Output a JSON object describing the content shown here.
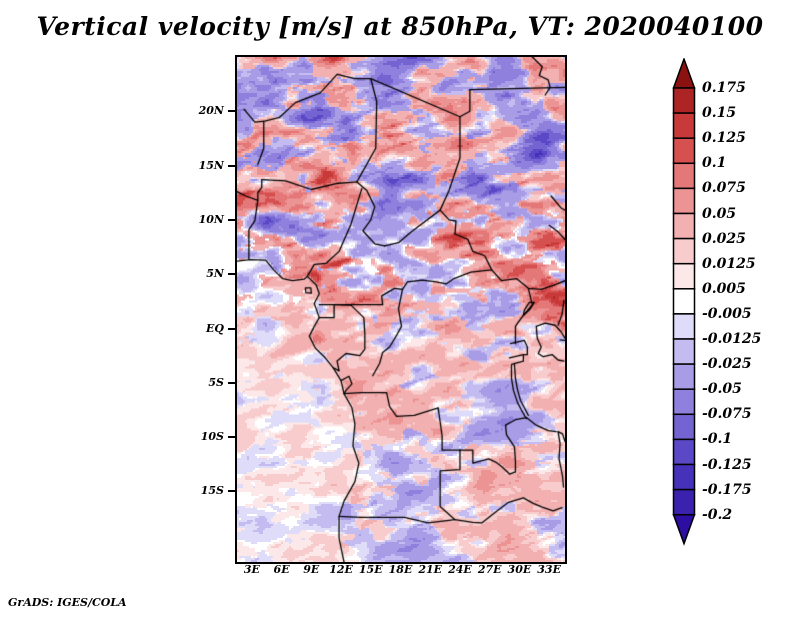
{
  "page": {
    "footer_credit": "GrADS: IGES/COLA",
    "background_color": "#ffffff"
  },
  "chart_data": {
    "type": "heatmap",
    "title": "Vertical velocity [m/s] at 850hPa, VT: 2020040100",
    "variable": "Vertical velocity",
    "units": "m/s",
    "pressure_level": "850hPa",
    "valid_time": "2020040100",
    "grid": false,
    "legend_position": "right",
    "x_axis": {
      "tick_labels": [
        "3E",
        "6E",
        "9E",
        "12E",
        "15E",
        "18E",
        "21E",
        "24E",
        "27E",
        "30E",
        "33E"
      ],
      "tick_lons": [
        3,
        6,
        9,
        12,
        15,
        18,
        21,
        24,
        27,
        30,
        33
      ],
      "lon_range": [
        1.5,
        34.6
      ]
    },
    "y_axis": {
      "tick_labels": [
        "20N",
        "15N",
        "10N",
        "5N",
        "EQ",
        "5S",
        "10S",
        "15S"
      ],
      "tick_lats": [
        20,
        15,
        10,
        5,
        0,
        -5,
        -10,
        -15
      ],
      "lat_range": [
        25,
        -21.5
      ]
    },
    "colorbar": {
      "tick_labels_top_to_bottom": [
        "0.175",
        "0.15",
        "0.125",
        "0.1",
        "0.075",
        "0.05",
        "0.025",
        "0.0125",
        "0.005",
        "-0.005",
        "-0.0125",
        "-0.025",
        "-0.05",
        "-0.075",
        "-0.1",
        "-0.125",
        "-0.175",
        "-0.2"
      ],
      "levels_ascending": [
        -0.2,
        -0.175,
        -0.125,
        -0.1,
        -0.075,
        -0.05,
        -0.025,
        -0.0125,
        -0.005,
        0.005,
        0.0125,
        0.025,
        0.05,
        0.075,
        0.1,
        0.125,
        0.15,
        0.175
      ],
      "colors_ascending": [
        "#2d0da2",
        "#3a22ae",
        "#4632ba",
        "#5a48c6",
        "#7464d2",
        "#8e80dc",
        "#a89ce6",
        "#c4bcf0",
        "#dedcf8",
        "#ffffff",
        "#fce8e8",
        "#f8cccc",
        "#f3b0b0",
        "#ec9494",
        "#e47878",
        "#d65050",
        "#c83a3a",
        "#ad2424",
        "#8c1111"
      ],
      "frame_color": "#000000"
    }
  },
  "map": {
    "coast_lonlat": [
      [
        1.5,
        6.2
      ],
      [
        2.8,
        6.35
      ],
      [
        4.4,
        6.3
      ],
      [
        5.2,
        5.4
      ],
      [
        6.1,
        4.6
      ],
      [
        7.1,
        4.4
      ],
      [
        8.3,
        4.55
      ],
      [
        8.6,
        4.8
      ],
      [
        9.5,
        4.0
      ],
      [
        9.8,
        3.2
      ],
      [
        9.3,
        2.3
      ],
      [
        9.8,
        1.0
      ],
      [
        9.3,
        0.2
      ],
      [
        8.8,
        -0.7
      ],
      [
        9.4,
        -1.8
      ],
      [
        10.4,
        -2.7
      ],
      [
        11.2,
        -3.6
      ],
      [
        12.0,
        -4.8
      ],
      [
        12.3,
        -6.0
      ],
      [
        13.1,
        -7.3
      ],
      [
        13.4,
        -8.8
      ],
      [
        13.2,
        -10.8
      ],
      [
        13.8,
        -12.4
      ],
      [
        13.4,
        -14.1
      ],
      [
        12.3,
        -15.9
      ],
      [
        11.8,
        -17.3
      ],
      [
        11.8,
        -19.3
      ],
      [
        12.3,
        -21.5
      ]
    ],
    "borders_lonlat": [
      [
        [
          2.2,
          20.2
        ],
        [
          3.3,
          19.0
        ],
        [
          4.3,
          19.1
        ],
        [
          5.8,
          19.45
        ],
        [
          7.4,
          20.8
        ],
        [
          9.9,
          21.7
        ],
        [
          11.6,
          23.4
        ],
        [
          13.4,
          23.0
        ],
        [
          15.0,
          23.0
        ],
        [
          24.0,
          19.5
        ]
      ],
      [
        [
          24.0,
          19.5
        ],
        [
          25.0,
          20.0
        ],
        [
          25.0,
          22.0
        ]
      ],
      [
        [
          25.0,
          22.0
        ],
        [
          34.6,
          22.2
        ]
      ],
      [
        [
          31.3,
          25.0
        ],
        [
          32.3,
          24.1
        ],
        [
          32.0,
          23.3
        ],
        [
          32.9,
          22.9
        ],
        [
          33.1,
          22.2
        ],
        [
          32.6,
          21.5
        ]
      ],
      [
        [
          3.6,
          15.1
        ],
        [
          4.2,
          16.6
        ],
        [
          4.2,
          19.1
        ]
      ],
      [
        [
          1.5,
          12.6
        ],
        [
          2.4,
          12.2
        ],
        [
          3.6,
          11.8
        ],
        [
          3.6,
          12.5
        ],
        [
          4.0,
          13.0
        ],
        [
          4.0,
          13.7
        ]
      ],
      [
        [
          4.0,
          13.7
        ],
        [
          6.4,
          13.6
        ],
        [
          9.0,
          12.8
        ],
        [
          11.5,
          13.35
        ],
        [
          13.6,
          13.5
        ]
      ],
      [
        [
          15.0,
          23.0
        ],
        [
          15.6,
          20.9
        ],
        [
          15.5,
          16.6
        ],
        [
          13.6,
          13.5
        ]
      ],
      [
        [
          13.6,
          13.5
        ],
        [
          14.6,
          12.7
        ],
        [
          15.4,
          11.2
        ],
        [
          15.0,
          10.0
        ],
        [
          14.2,
          9.0
        ],
        [
          15.4,
          7.8
        ],
        [
          16.4,
          7.6
        ]
      ],
      [
        [
          16.4,
          7.6
        ],
        [
          17.8,
          7.9
        ],
        [
          19.1,
          8.9
        ],
        [
          22.0,
          10.9
        ]
      ],
      [
        [
          22.0,
          10.9
        ],
        [
          22.9,
          12.7
        ],
        [
          24.0,
          15.7
        ],
        [
          24.0,
          19.5
        ]
      ],
      [
        [
          22.0,
          10.9
        ],
        [
          22.9,
          10.0
        ],
        [
          23.6,
          9.9
        ],
        [
          23.5,
          8.7
        ]
      ],
      [
        [
          23.5,
          8.7
        ],
        [
          24.8,
          8.2
        ],
        [
          25.3,
          7.1
        ],
        [
          26.5,
          6.7
        ],
        [
          27.2,
          5.4
        ]
      ],
      [
        [
          27.2,
          5.4
        ],
        [
          28.2,
          4.4
        ],
        [
          29.7,
          4.6
        ],
        [
          30.9,
          3.7
        ],
        [
          32.2,
          3.6
        ],
        [
          33.5,
          4.0
        ],
        [
          34.6,
          4.4
        ]
      ],
      [
        [
          14.1,
          12.9
        ],
        [
          13.0,
          9.6
        ],
        [
          11.8,
          7.1
        ],
        [
          10.5,
          6.0
        ],
        [
          9.3,
          5.9
        ],
        [
          8.6,
          4.8
        ]
      ],
      [
        [
          2.7,
          6.4
        ],
        [
          2.7,
          9.1
        ],
        [
          3.3,
          9.9
        ],
        [
          3.6,
          11.8
        ]
      ],
      [
        [
          8.4,
          3.75
        ],
        [
          8.95,
          3.75
        ],
        [
          9.0,
          3.25
        ],
        [
          8.45,
          3.3
        ],
        [
          8.4,
          3.75
        ]
      ],
      [
        [
          9.8,
          1.0
        ],
        [
          11.3,
          1.0
        ],
        [
          11.3,
          2.2
        ]
      ],
      [
        [
          9.8,
          2.2
        ],
        [
          16.2,
          2.2
        ]
      ],
      [
        [
          16.2,
          2.2
        ],
        [
          16.1,
          3.0
        ],
        [
          17.4,
          3.7
        ],
        [
          18.2,
          3.6
        ]
      ],
      [
        [
          18.2,
          3.6
        ],
        [
          18.7,
          4.3
        ],
        [
          20.2,
          4.45
        ],
        [
          21.6,
          4.3
        ],
        [
          22.6,
          4.1
        ],
        [
          23.4,
          4.6
        ],
        [
          25.1,
          5.2
        ],
        [
          27.2,
          5.4
        ]
      ],
      [
        [
          18.2,
          3.6
        ],
        [
          17.8,
          1.8
        ],
        [
          18.1,
          0.2
        ],
        [
          17.5,
          -0.8
        ],
        [
          16.9,
          -1.7
        ],
        [
          16.2,
          -2.2
        ],
        [
          15.9,
          -3.2
        ],
        [
          15.2,
          -4.35
        ]
      ],
      [
        [
          11.3,
          2.2
        ],
        [
          13.0,
          2.15
        ],
        [
          14.3,
          1.0
        ],
        [
          14.4,
          -0.5
        ],
        [
          14.4,
          -1.9
        ],
        [
          13.9,
          -2.5
        ],
        [
          12.5,
          -2.3
        ],
        [
          11.6,
          -3.0
        ],
        [
          11.8,
          -3.9
        ],
        [
          11.2,
          -3.6
        ]
      ],
      [
        [
          12.0,
          -4.8
        ],
        [
          12.8,
          -4.4
        ],
        [
          13.1,
          -5.1
        ],
        [
          12.5,
          -5.7
        ],
        [
          12.3,
          -6.0
        ]
      ],
      [
        [
          12.3,
          -6.0
        ],
        [
          14.0,
          -5.9
        ],
        [
          16.6,
          -5.9
        ],
        [
          16.9,
          -7.2
        ],
        [
          17.6,
          -8.1
        ],
        [
          19.4,
          -8.0
        ],
        [
          21.8,
          -7.3
        ],
        [
          22.2,
          -9.9
        ],
        [
          22.2,
          -11.2
        ],
        [
          24.0,
          -11.2
        ]
      ],
      [
        [
          24.0,
          -11.2
        ],
        [
          24.0,
          -13.0
        ],
        [
          22.0,
          -13.1
        ],
        [
          22.0,
          -16.4
        ],
        [
          23.5,
          -17.6
        ]
      ],
      [
        [
          11.8,
          -17.3
        ],
        [
          14.0,
          -17.4
        ],
        [
          18.4,
          -17.4
        ],
        [
          20.8,
          -17.9
        ],
        [
          23.5,
          -17.6
        ]
      ],
      [
        [
          23.5,
          -17.6
        ],
        [
          25.3,
          -17.85
        ],
        [
          26.2,
          -17.9
        ],
        [
          27.6,
          -16.9
        ],
        [
          28.9,
          -16.0
        ],
        [
          30.4,
          -15.6
        ],
        [
          31.4,
          -16.1
        ],
        [
          32.3,
          -16.45
        ],
        [
          33.4,
          -16.8
        ],
        [
          34.3,
          -16.5
        ]
      ],
      [
        [
          24.0,
          -11.2
        ],
        [
          25.3,
          -11.2
        ],
        [
          25.3,
          -12.4
        ],
        [
          26.9,
          -12.0
        ],
        [
          27.6,
          -12.3
        ],
        [
          28.2,
          -12.7
        ],
        [
          29.0,
          -13.4
        ],
        [
          29.6,
          -13.2
        ],
        [
          29.6,
          -12.2
        ],
        [
          29.5,
          -10.9
        ],
        [
          28.7,
          -9.8
        ],
        [
          28.6,
          -8.9
        ],
        [
          29.6,
          -8.4
        ],
        [
          30.7,
          -8.2
        ]
      ],
      [
        [
          30.7,
          -8.2
        ],
        [
          31.7,
          -8.9
        ],
        [
          32.9,
          -9.4
        ],
        [
          33.7,
          -9.5
        ]
      ],
      [
        [
          33.9,
          -9.5
        ],
        [
          34.1,
          -10.6
        ],
        [
          34.0,
          -12.0
        ],
        [
          34.35,
          -13.6
        ],
        [
          34.45,
          -14.6
        ]
      ],
      [
        [
          33.9,
          -9.5
        ],
        [
          34.35,
          -9.7
        ],
        [
          34.6,
          -10.4
        ]
      ],
      [
        [
          29.6,
          -1.4
        ],
        [
          29.6,
          0.2
        ],
        [
          29.9,
          0.6
        ],
        [
          30.4,
          1.2
        ],
        [
          31.3,
          2.2
        ],
        [
          30.9,
          3.7
        ]
      ],
      [
        [
          30.4,
          1.2
        ],
        [
          31.1,
          1.8
        ],
        [
          31.5,
          2.4
        ],
        [
          31.0,
          2.4
        ],
        [
          30.5,
          1.7
        ],
        [
          30.4,
          1.2
        ]
      ],
      [
        [
          29.1,
          -1.4
        ],
        [
          30.5,
          -1.1
        ],
        [
          30.8,
          -1.7
        ],
        [
          30.8,
          -2.4
        ],
        [
          30.4,
          -2.4
        ],
        [
          30.4,
          -3.0
        ],
        [
          29.2,
          -3.3
        ]
      ],
      [
        [
          29.0,
          -2.7
        ],
        [
          30.4,
          -2.4
        ]
      ],
      [
        [
          29.2,
          -3.4
        ],
        [
          29.2,
          -4.6
        ],
        [
          29.4,
          -5.7
        ],
        [
          29.8,
          -6.8
        ],
        [
          30.2,
          -7.5
        ],
        [
          30.7,
          -8.3
        ]
      ],
      [
        [
          29.5,
          -3.3
        ],
        [
          29.6,
          -4.6
        ],
        [
          29.8,
          -5.6
        ],
        [
          30.1,
          -6.6
        ],
        [
          30.5,
          -7.3
        ],
        [
          30.9,
          -8.0
        ]
      ],
      [
        [
          31.7,
          0.2
        ],
        [
          32.6,
          0.5
        ],
        [
          33.6,
          0.3
        ],
        [
          34.2,
          -0.3
        ],
        [
          34.6,
          -0.9
        ]
      ],
      [
        [
          31.7,
          0.2
        ],
        [
          31.8,
          -0.9
        ],
        [
          32.2,
          -1.7
        ],
        [
          31.9,
          -2.3
        ],
        [
          32.4,
          -2.6
        ],
        [
          33.3,
          -2.4
        ],
        [
          33.9,
          -2.9
        ],
        [
          34.5,
          -3.0
        ]
      ],
      [
        [
          33.9,
          0.3
        ],
        [
          34.3,
          1.3
        ],
        [
          34.5,
          2.6
        ]
      ],
      [
        [
          34.1,
          -1.05
        ],
        [
          34.6,
          -1.1
        ]
      ],
      [
        [
          33.2,
          12.2
        ],
        [
          34.2,
          11.1
        ],
        [
          34.6,
          10.9
        ]
      ],
      [
        [
          33.0,
          9.5
        ],
        [
          33.9,
          8.9
        ],
        [
          34.6,
          8.2
        ]
      ]
    ]
  }
}
